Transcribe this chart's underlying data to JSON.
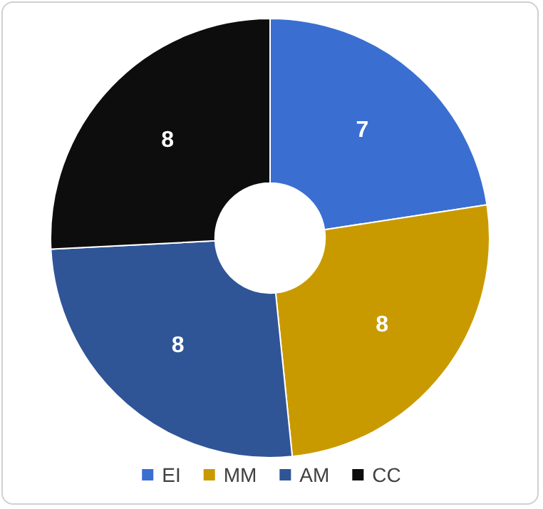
{
  "chart_data": {
    "type": "donut",
    "categories": [
      "EI",
      "MM",
      "AM",
      "CC"
    ],
    "values": [
      7,
      8,
      8,
      8
    ],
    "colors": [
      "#3a6fd1",
      "#c99a00",
      "#2f5597",
      "#0d0d0d"
    ],
    "data_labels": true,
    "legend": "bottom"
  }
}
